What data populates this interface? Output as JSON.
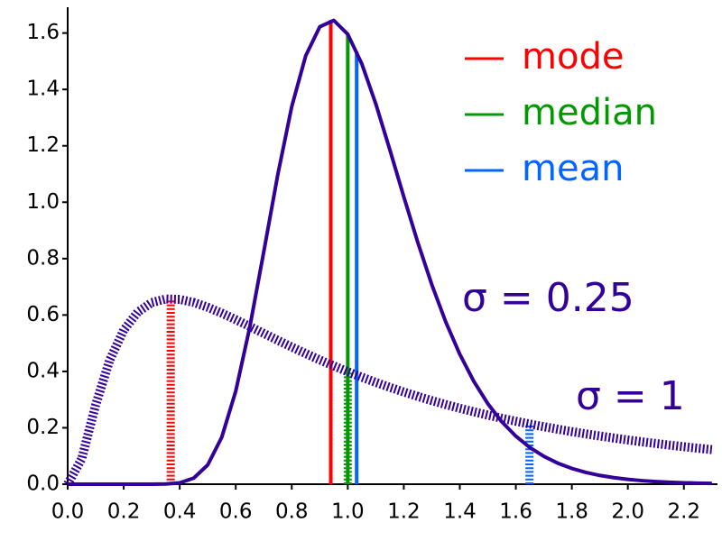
{
  "chart_data": {
    "type": "line",
    "x": [
      0,
      0.05,
      0.1,
      0.15,
      0.2,
      0.25,
      0.3,
      0.35,
      0.4,
      0.45,
      0.5,
      0.55,
      0.6,
      0.65,
      0.7,
      0.75,
      0.8,
      0.85,
      0.9,
      0.95,
      1.0,
      1.05,
      1.1,
      1.15,
      1.2,
      1.25,
      1.3,
      1.35,
      1.4,
      1.45,
      1.5,
      1.55,
      1.6,
      1.65,
      1.7,
      1.75,
      1.8,
      1.85,
      1.9,
      1.95,
      2.0,
      2.05,
      2.1,
      2.15,
      2.2,
      2.25,
      2.3
    ],
    "series": [
      {
        "name": "σ = 0.25",
        "color": "#330099",
        "line_style": "solid",
        "values": [
          0,
          0,
          0,
          0,
          0,
          0,
          0,
          0.0007,
          0.0048,
          0.0216,
          0.0684,
          0.1663,
          0.3299,
          0.5561,
          0.8237,
          1.0973,
          1.3394,
          1.5199,
          1.6222,
          1.6448,
          1.5958,
          1.4911,
          1.349,
          1.1868,
          1.0194,
          0.8573,
          0.7077,
          0.5751,
          0.4607,
          0.3646,
          0.2855,
          0.2213,
          0.1704,
          0.1301,
          0.0988,
          0.0744,
          0.0559,
          0.0418,
          0.0311,
          0.0231,
          0.0171,
          0.0126,
          0.0093,
          0.0068,
          0.005,
          0.0037,
          0.0027
        ]
      },
      {
        "name": "σ = 1",
        "color": "#330099",
        "line_style": "dashed",
        "values": [
          0,
          0.0898,
          0.2816,
          0.4399,
          0.5463,
          0.6104,
          0.6442,
          0.6569,
          0.6555,
          0.6445,
          0.6275,
          0.6067,
          0.5836,
          0.5594,
          0.5348,
          0.5103,
          0.4864,
          0.4632,
          0.4408,
          0.4194,
          0.3989,
          0.3795,
          0.361,
          0.3435,
          0.327,
          0.3113,
          0.2965,
          0.2825,
          0.2693,
          0.2568,
          0.245,
          0.2338,
          0.2232,
          0.2133,
          0.2039,
          0.195,
          0.1864,
          0.1784,
          0.1709,
          0.1637,
          0.1569,
          0.1504,
          0.1443,
          0.1384,
          0.1329,
          0.1276,
          0.1226
        ]
      }
    ],
    "stats": [
      {
        "name": "mode",
        "color": "#ff0000",
        "x": [
          0.9394,
          0.3679
        ],
        "y": [
          1.646,
          0.6577
        ]
      },
      {
        "name": "median",
        "color": "#009900",
        "x": [
          1.0,
          1.0
        ],
        "y": [
          1.5958,
          0.3989
        ]
      },
      {
        "name": "mean",
        "color": "#0066ff",
        "x": [
          1.0317,
          1.6487
        ],
        "y": [
          1.535,
          0.2136
        ]
      }
    ],
    "xlim": [
      0,
      2.32
    ],
    "ylim": [
      0,
      1.65
    ],
    "xticks": [
      {
        "value": 0,
        "label": "0.0"
      },
      0.2,
      0.4,
      0.6,
      0.8,
      {
        "value": 1,
        "label": "1.0"
      },
      1.2,
      1.4,
      1.6,
      1.8,
      {
        "value": 2,
        "label": "2.0"
      },
      2.2
    ],
    "yticks": [
      {
        "value": 0,
        "label": "0.0"
      },
      0.2,
      0.4,
      0.6,
      0.8,
      {
        "value": 1,
        "label": "1.0"
      },
      1.2,
      1.4,
      1.6
    ],
    "grid": false,
    "legend": "upper right"
  }
}
